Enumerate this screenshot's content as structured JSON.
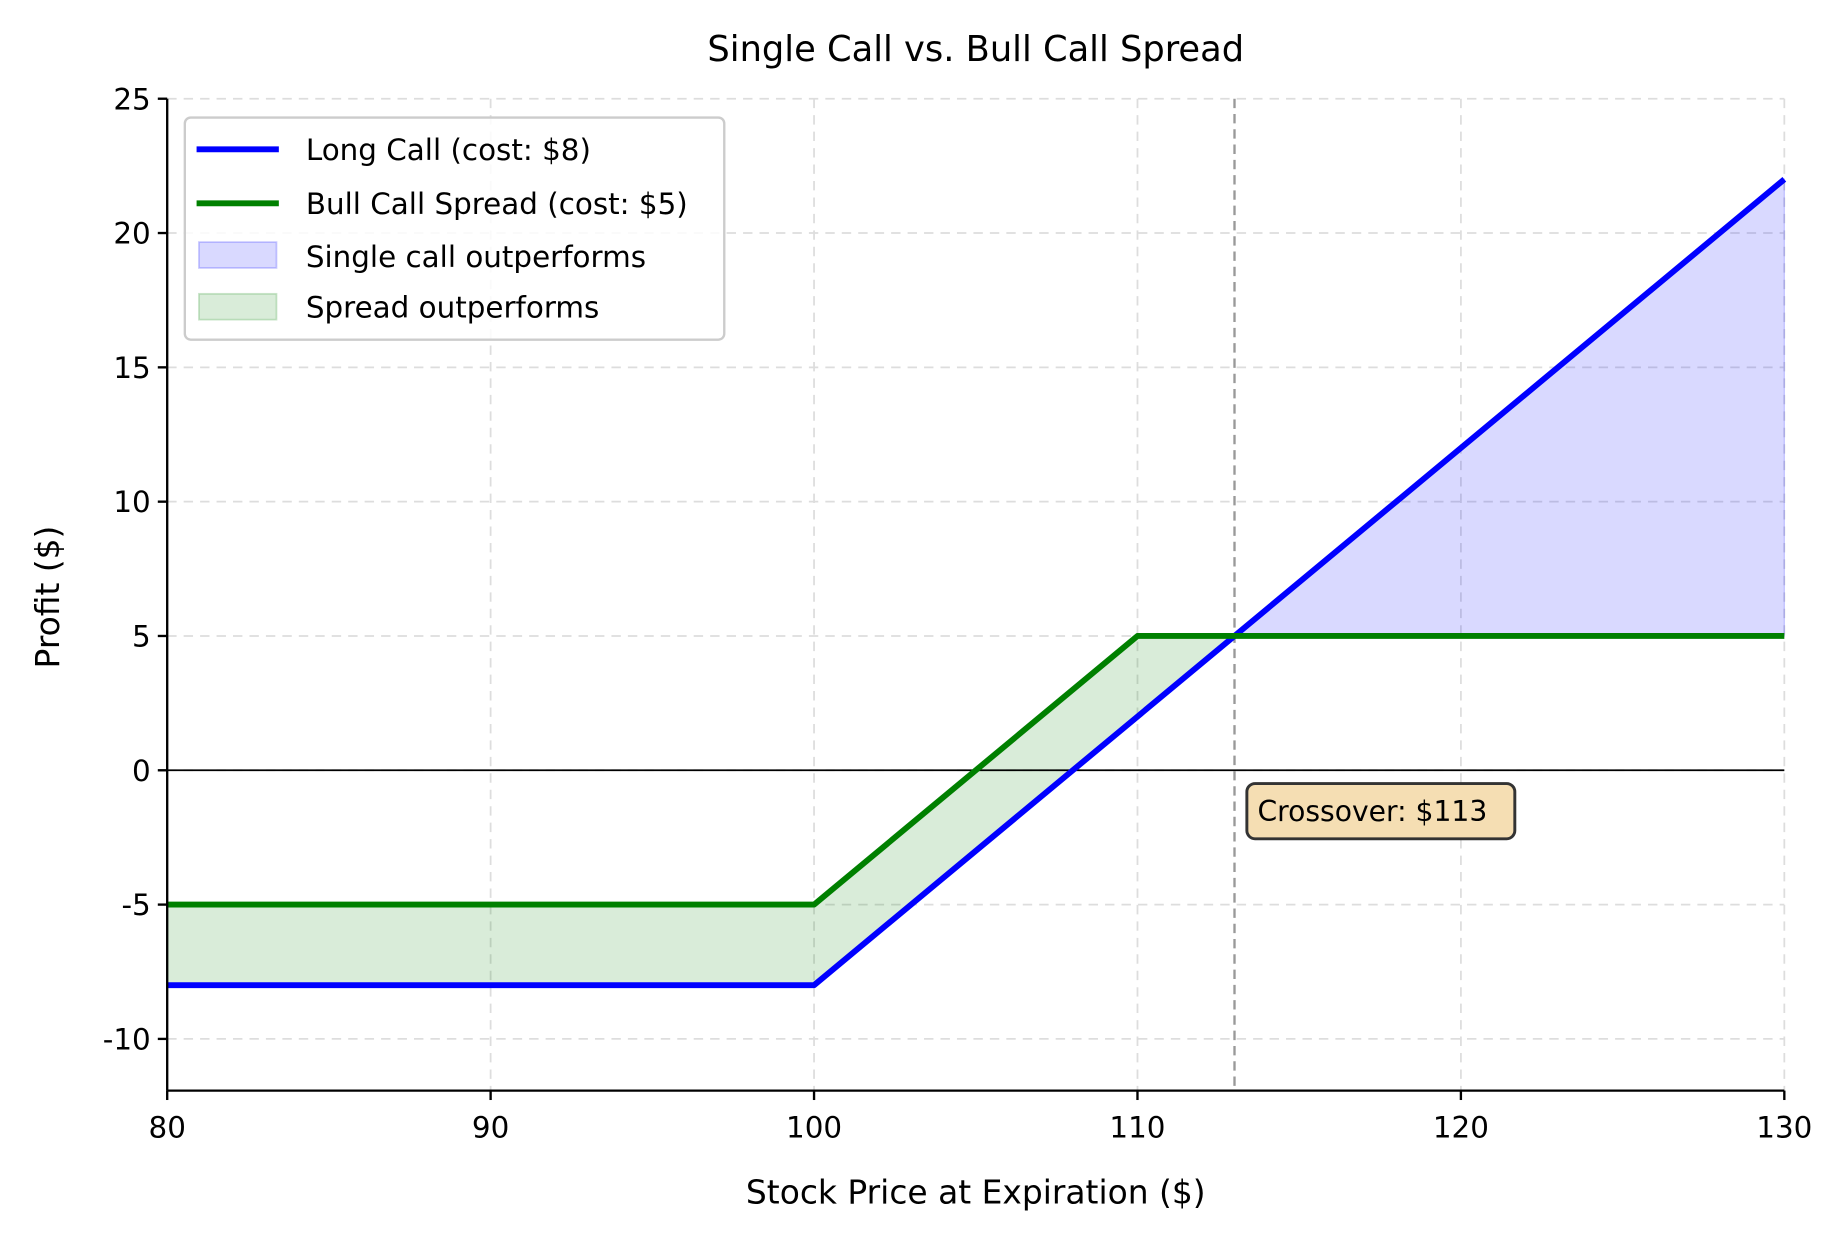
{
  "chart_data": {
    "type": "line",
    "title": "Single Call vs. Bull Call Spread",
    "xlabel": "Stock Price at Expiration ($)",
    "ylabel": "Profit ($)",
    "xlim": [
      80,
      130
    ],
    "ylim": [
      -12,
      25
    ],
    "xticks": [
      80,
      90,
      100,
      110,
      120,
      130
    ],
    "yticks": [
      -10,
      -5,
      0,
      5,
      10,
      15,
      20,
      25
    ],
    "grid": true,
    "legend_position": "top-left",
    "series": [
      {
        "name": "Long Call (cost: $8)",
        "color": "#0000ff",
        "x": [
          80,
          100,
          130
        ],
        "y": [
          -8,
          -8,
          22
        ]
      },
      {
        "name": "Bull Call Spread (cost: $5)",
        "color": "#008000",
        "x": [
          80,
          100,
          110,
          130
        ],
        "y": [
          -5,
          -5,
          5,
          5
        ]
      }
    ],
    "fills": [
      {
        "name": "Single call outperforms",
        "color": "#0000ff",
        "opacity": 0.15,
        "x_range": [
          113,
          130
        ]
      },
      {
        "name": "Spread outperforms",
        "color": "#008000",
        "opacity": 0.15,
        "x_range": [
          80,
          113
        ]
      }
    ],
    "reference_lines": {
      "horizontal_y": 0,
      "vertical_x": 113
    },
    "annotation": {
      "text": "Crossover: $113",
      "x": 114,
      "y": -1.5,
      "bg": "#f5deb3"
    }
  }
}
